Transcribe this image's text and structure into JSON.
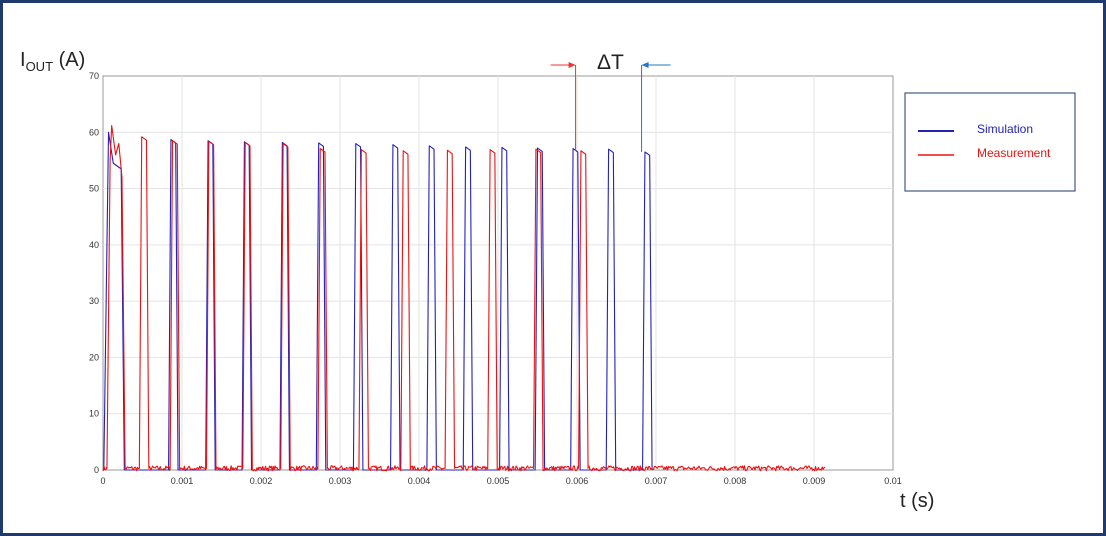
{
  "chart_data": {
    "type": "line",
    "ylabel_main": "I",
    "ylabel_sub": "OUT",
    "ylabel_unit": " (A)",
    "xlabel": "t (s)",
    "annotation": "ΔT",
    "xlim": [
      0,
      0.01
    ],
    "ylim": [
      0,
      70
    ],
    "x_ticks": [
      "0",
      "0.001",
      "0.002",
      "0.003",
      "0.004",
      "0.005",
      "0.006",
      "0.007",
      "0.008",
      "0.009",
      "0.01"
    ],
    "y_ticks": [
      "0",
      "10",
      "20",
      "30",
      "40",
      "50",
      "60",
      "70"
    ],
    "grid": true,
    "legend_position": "right",
    "series": [
      {
        "name": "Simulation",
        "color": "#2222bb",
        "pulse_starts": [
          1e-05,
          0.00083,
          0.0013,
          0.00176,
          0.00224,
          0.0027,
          0.00317,
          0.00364,
          0.0041,
          0.00456,
          0.00502,
          0.00547,
          0.00592,
          0.00637,
          0.00683
        ],
        "pulse_peaks": [
          60,
          58.7,
          58.5,
          58.3,
          58.2,
          58.1,
          58.0,
          57.8,
          57.6,
          57.4,
          57.3,
          57.2,
          57.1,
          57.0,
          56.5
        ],
        "end_time": 0.00689,
        "baseline": 0
      },
      {
        "name": "Measurement",
        "color": "#ee1111",
        "pulse_starts": [
          5e-05,
          0.00046,
          0.00085,
          0.00131,
          0.00177,
          0.00225,
          0.00272,
          0.00324,
          0.00377,
          0.00433,
          0.00487,
          0.00545,
          0.00602
        ],
        "pulse_peaks": [
          61.2,
          59.2,
          58.5,
          58.4,
          58.2,
          58.0,
          57.1,
          56.9,
          56.7,
          56.8,
          56.9,
          57.0,
          56.7
        ],
        "end_time": 0.00915,
        "baseline": 0.3
      }
    ]
  },
  "delta_markers": {
    "measurement_color": "#ee3333",
    "simulation_color": "#2277cc"
  }
}
